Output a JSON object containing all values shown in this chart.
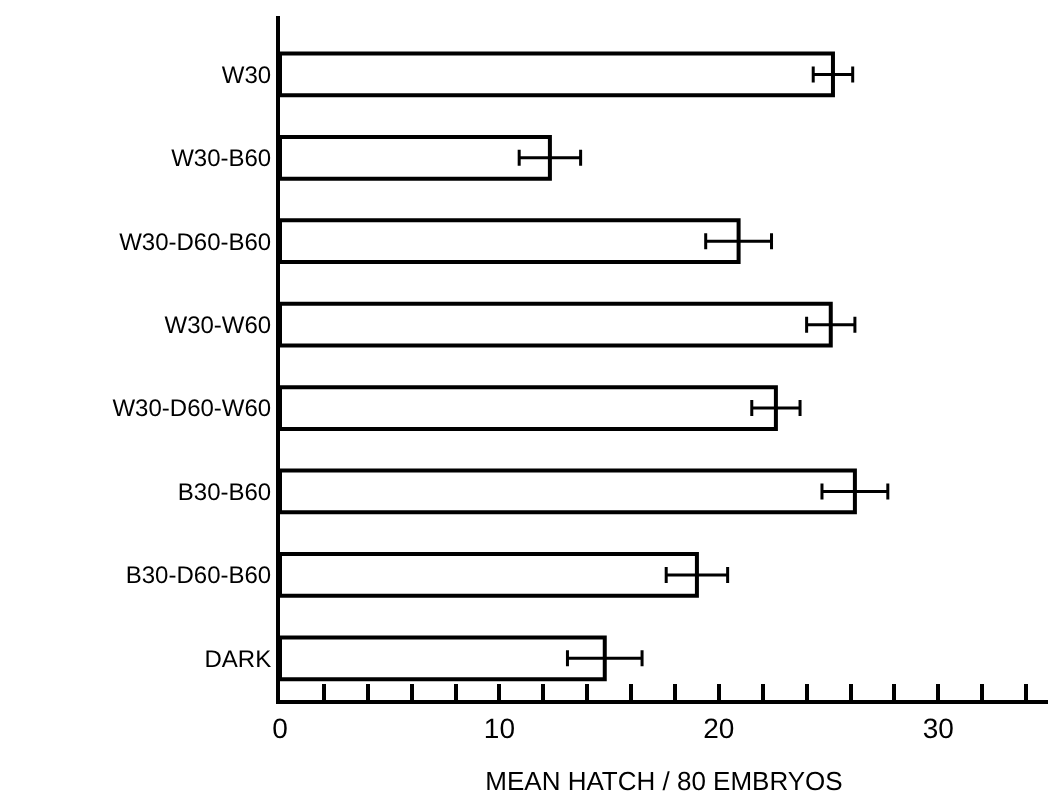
{
  "chart_data": {
    "type": "bar",
    "orientation": "horizontal",
    "xlabel": "MEAN HATCH / 80 EMBRYOS",
    "categories": [
      "W30",
      "W30-B60",
      "W30-D60-B60",
      "W30-W60",
      "W30-D60-W60",
      "B30-B60",
      "B30-D60-B60",
      "DARK"
    ],
    "values": [
      25.2,
      12.3,
      20.9,
      25.1,
      22.6,
      26.2,
      19.0,
      14.8
    ],
    "errors": [
      0.9,
      1.4,
      1.5,
      1.1,
      1.1,
      1.5,
      1.4,
      1.7
    ],
    "color": "#ffffff",
    "xlim": [
      0,
      35
    ],
    "xticks": [
      0,
      {
        "value": 2,
        "label": null
      },
      {
        "value": 4,
        "label": null
      },
      {
        "value": 6,
        "label": null
      },
      {
        "value": 8,
        "label": null
      },
      10,
      {
        "value": 12,
        "label": null
      },
      {
        "value": 14,
        "label": null
      },
      {
        "value": 16,
        "label": null
      },
      {
        "value": 18,
        "label": null
      },
      20,
      {
        "value": 22,
        "label": null
      },
      {
        "value": 24,
        "label": null
      },
      {
        "value": 26,
        "label": null
      },
      {
        "value": 28,
        "label": null
      },
      30,
      {
        "value": 32,
        "label": null
      },
      {
        "value": 34,
        "label": null
      }
    ],
    "legend": false
  }
}
